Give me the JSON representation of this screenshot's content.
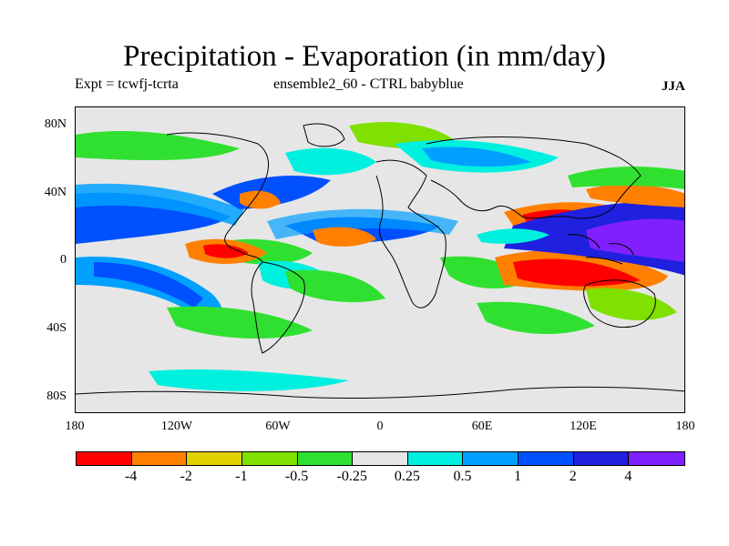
{
  "title": "Precipitation - Evaporation (in mm/day)",
  "subtitle_left": "Expt = tcwfj-tcrta",
  "subtitle_center": "ensemble2_60 - CTRL babyblue",
  "season": "JJA",
  "y_axis_labels": [
    "80N",
    "40N",
    "0",
    "40S",
    "80S"
  ],
  "x_axis_labels": [
    "180",
    "120W",
    "60W",
    "0",
    "60E",
    "120E",
    "180"
  ],
  "colorbar": {
    "colors": [
      "#ff0000",
      "#ff8000",
      "#e0d000",
      "#80e000",
      "#30e030",
      "#e6e6e6",
      "#00f0e0",
      "#00a0ff",
      "#0050ff",
      "#2020e0",
      "#8020ff"
    ],
    "labels": [
      "-4",
      "-2",
      "-1",
      "-0.5",
      "-0.25",
      "0.25",
      "0.5",
      "1",
      "2",
      "4"
    ]
  }
}
